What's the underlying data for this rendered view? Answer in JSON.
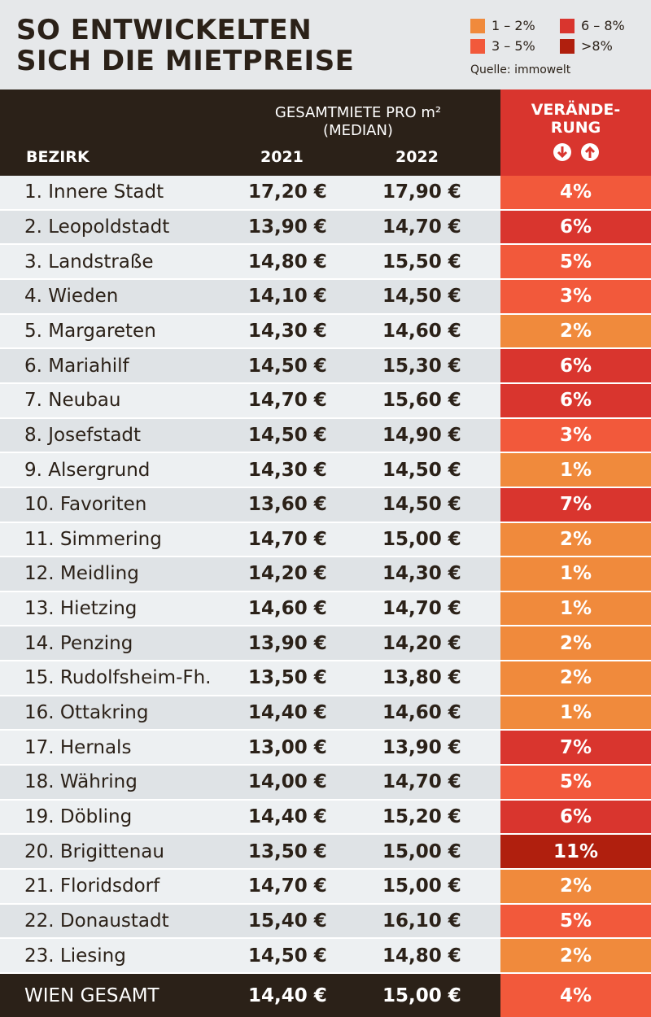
{
  "header": {
    "title_lines": [
      "SO ENTWICKELTEN",
      "SICH DIE MIETPREISE"
    ],
    "legend": [
      {
        "label": "1 – 2%",
        "color": "#f08a3c"
      },
      {
        "label": "6 – 8%",
        "color": "#d9352e"
      },
      {
        "label": "3 – 5%",
        "color": "#f2593b"
      },
      {
        "label": ">8%",
        "color": "#b01f0e"
      }
    ],
    "source": "Quelle: immowelt"
  },
  "table": {
    "columns": {
      "district": "BEZIRK",
      "group_lines": [
        "GESAMTMIETE PRO m²",
        "(MEDIAN)"
      ],
      "year1": "2021",
      "year2": "2022",
      "change_lines": [
        "VERÄNDE-",
        "RUNG"
      ]
    },
    "rows": [
      {
        "district": "1. Innere Stadt",
        "year1": "17,20 €",
        "year2": "17,90 €",
        "change": "4%",
        "color": "#f2593b"
      },
      {
        "district": "2. Leopoldstadt",
        "year1": "13,90 €",
        "year2": "14,70 €",
        "change": "6%",
        "color": "#d9352e"
      },
      {
        "district": "3. Landstraße",
        "year1": "14,80 €",
        "year2": "15,50 €",
        "change": "5%",
        "color": "#f2593b"
      },
      {
        "district": "4. Wieden",
        "year1": "14,10 €",
        "year2": "14,50 €",
        "change": "3%",
        "color": "#f2593b"
      },
      {
        "district": "5. Margareten",
        "year1": "14,30 €",
        "year2": "14,60 €",
        "change": "2%",
        "color": "#f08a3c"
      },
      {
        "district": "6. Mariahilf",
        "year1": "14,50 €",
        "year2": "15,30 €",
        "change": "6%",
        "color": "#d9352e"
      },
      {
        "district": "7. Neubau",
        "year1": "14,70 €",
        "year2": "15,60 €",
        "change": "6%",
        "color": "#d9352e"
      },
      {
        "district": "8. Josefstadt",
        "year1": "14,50 €",
        "year2": "14,90 €",
        "change": "3%",
        "color": "#f2593b"
      },
      {
        "district": "9. Alsergrund",
        "year1": "14,30 €",
        "year2": "14,50 €",
        "change": "1%",
        "color": "#f08a3c"
      },
      {
        "district": "10. Favoriten",
        "year1": "13,60 €",
        "year2": "14,50 €",
        "change": "7%",
        "color": "#d9352e"
      },
      {
        "district": "11. Simmering",
        "year1": "14,70 €",
        "year2": "15,00 €",
        "change": "2%",
        "color": "#f08a3c"
      },
      {
        "district": "12. Meidling",
        "year1": "14,20 €",
        "year2": "14,30 €",
        "change": "1%",
        "color": "#f08a3c"
      },
      {
        "district": "13. Hietzing",
        "year1": "14,60 €",
        "year2": "14,70 €",
        "change": "1%",
        "color": "#f08a3c"
      },
      {
        "district": "14. Penzing",
        "year1": "13,90 €",
        "year2": "14,20 €",
        "change": "2%",
        "color": "#f08a3c"
      },
      {
        "district": "15. Rudolfsheim-Fh.",
        "year1": "13,50 €",
        "year2": "13,80 €",
        "change": "2%",
        "color": "#f08a3c"
      },
      {
        "district": "16. Ottakring",
        "year1": "14,40 €",
        "year2": "14,60 €",
        "change": "1%",
        "color": "#f08a3c"
      },
      {
        "district": "17. Hernals",
        "year1": "13,00 €",
        "year2": "13,90 €",
        "change": "7%",
        "color": "#d9352e"
      },
      {
        "district": "18. Währing",
        "year1": "14,00 €",
        "year2": "14,70 €",
        "change": "5%",
        "color": "#f2593b"
      },
      {
        "district": "19. Döbling",
        "year1": "14,40 €",
        "year2": "15,20 €",
        "change": "6%",
        "color": "#d9352e"
      },
      {
        "district": "20. Brigittenau",
        "year1": "13,50 €",
        "year2": "15,00 €",
        "change": "11%",
        "color": "#b01f0e"
      },
      {
        "district": "21. Floridsdorf",
        "year1": "14,70 €",
        "year2": "15,00 €",
        "change": "2%",
        "color": "#f08a3c"
      },
      {
        "district": "22. Donaustadt",
        "year1": "15,40 €",
        "year2": "16,10 €",
        "change": "5%",
        "color": "#f2593b"
      },
      {
        "district": "23. Liesing",
        "year1": "14,50 €",
        "year2": "14,80 €",
        "change": "2%",
        "color": "#f08a3c"
      }
    ],
    "total": {
      "district": "WIEN GESAMT",
      "year1": "14,40 €",
      "year2": "15,00 €",
      "change": "4%",
      "color": "#f2593b"
    }
  }
}
